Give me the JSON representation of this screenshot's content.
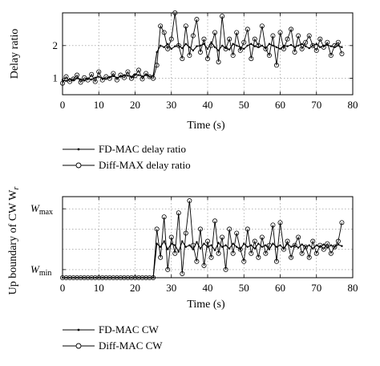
{
  "chart_data": [
    {
      "type": "line",
      "xlabel": "Time (s)",
      "ylabel": "Delay ratio",
      "xlim": [
        0,
        80
      ],
      "ylim": [
        0.5,
        3.0
      ],
      "xticks": [
        "0",
        "10",
        "20",
        "30",
        "40",
        "50",
        "60",
        "70",
        "80"
      ],
      "yticks": [
        "1",
        "2"
      ],
      "grid": "dotted",
      "legend_placement": "below",
      "series": [
        {
          "name": "FD-MAC delay ratio",
          "marker": "dot",
          "x": [
            0,
            1,
            2,
            3,
            4,
            5,
            6,
            7,
            8,
            9,
            10,
            11,
            12,
            13,
            14,
            15,
            16,
            17,
            18,
            19,
            20,
            21,
            22,
            23,
            24,
            25,
            26,
            27,
            28,
            29,
            30,
            31,
            32,
            33,
            34,
            35,
            36,
            37,
            38,
            39,
            40,
            41,
            42,
            43,
            44,
            45,
            46,
            47,
            48,
            49,
            50,
            51,
            52,
            53,
            54,
            55,
            56,
            57,
            58,
            59,
            60,
            61,
            62,
            63,
            64,
            65,
            66,
            67,
            68,
            69,
            70,
            71,
            72,
            73,
            74,
            75,
            76,
            77
          ],
          "values": [
            0.95,
            0.92,
            0.98,
            0.95,
            1.0,
            0.97,
            0.93,
            1.0,
            0.96,
            1.02,
            1.05,
            1.0,
            0.98,
            1.03,
            1.07,
            1.02,
            1.05,
            1.1,
            1.08,
            1.05,
            1.12,
            1.1,
            1.06,
            1.1,
            1.05,
            1.08,
            1.8,
            2.0,
            1.95,
            2.05,
            1.9,
            1.98,
            2.0,
            1.92,
            2.05,
            1.95,
            1.85,
            1.98,
            2.0,
            2.05,
            1.9,
            2.1,
            1.95,
            1.85,
            2.0,
            1.92,
            1.88,
            2.05,
            2.0,
            1.95,
            1.9,
            2.0,
            2.05,
            1.98,
            1.95,
            2.0,
            1.92,
            2.05,
            2.0,
            1.95,
            1.9,
            2.0,
            1.98,
            2.02,
            1.95,
            2.0,
            2.05,
            1.98,
            1.92,
            2.0,
            2.05,
            1.95,
            2.0,
            2.02,
            1.98,
            1.95,
            2.0,
            1.95
          ]
        },
        {
          "name": "Diff-MAX delay ratio",
          "marker": "circle",
          "x": [
            0,
            1,
            2,
            3,
            4,
            5,
            6,
            7,
            8,
            9,
            10,
            11,
            12,
            13,
            14,
            15,
            16,
            17,
            18,
            19,
            20,
            21,
            22,
            23,
            24,
            25,
            26,
            27,
            28,
            29,
            30,
            31,
            32,
            33,
            34,
            35,
            36,
            37,
            38,
            39,
            40,
            41,
            42,
            43,
            44,
            45,
            46,
            47,
            48,
            49,
            50,
            51,
            52,
            53,
            54,
            55,
            56,
            57,
            58,
            59,
            60,
            61,
            62,
            63,
            64,
            65,
            66,
            67,
            68,
            69,
            70,
            71,
            72,
            73,
            74,
            75,
            76,
            77
          ],
          "values": [
            0.85,
            1.05,
            0.9,
            0.98,
            1.1,
            0.88,
            1.02,
            0.95,
            1.12,
            0.9,
            1.2,
            0.95,
            1.05,
            1.0,
            1.15,
            0.95,
            1.1,
            1.02,
            1.2,
            1.0,
            1.08,
            1.25,
            0.98,
            1.15,
            1.05,
            1.0,
            1.4,
            2.6,
            2.4,
            1.9,
            2.2,
            3.0,
            2.0,
            1.6,
            2.6,
            1.7,
            2.3,
            2.8,
            1.8,
            2.2,
            1.6,
            2.0,
            2.4,
            1.5,
            2.9,
            1.9,
            2.2,
            1.7,
            2.4,
            1.85,
            2.1,
            2.5,
            1.6,
            2.2,
            2.0,
            2.6,
            1.9,
            1.7,
            2.3,
            1.4,
            2.4,
            1.9,
            2.2,
            2.5,
            1.8,
            2.3,
            1.9,
            2.1,
            2.3,
            2.0,
            1.85,
            2.2,
            1.95,
            2.1,
            1.7,
            2.0,
            2.1,
            1.75
          ]
        }
      ]
    },
    {
      "type": "line",
      "xlabel": "Time (s)",
      "ylabel": "Up boundary of CW W",
      "ylabel_sub": "r",
      "xlim": [
        0,
        80
      ],
      "ylim": [
        0,
        1.0
      ],
      "xticks": [
        "0",
        "10",
        "20",
        "30",
        "40",
        "50",
        "60",
        "70",
        "80"
      ],
      "yticks": [
        {
          "main": "W",
          "sub": "min",
          "value": 0.1
        },
        {
          "main": "W",
          "sub": "max",
          "value": 0.85
        }
      ],
      "grid": "dotted",
      "legend_placement": "below",
      "series": [
        {
          "name": "FD-MAC CW",
          "marker": "dot",
          "x": [
            0,
            1,
            2,
            3,
            4,
            5,
            6,
            7,
            8,
            9,
            10,
            11,
            12,
            13,
            14,
            15,
            16,
            17,
            18,
            19,
            20,
            21,
            22,
            23,
            24,
            25,
            26,
            27,
            28,
            29,
            30,
            31,
            32,
            33,
            34,
            35,
            36,
            37,
            38,
            39,
            40,
            41,
            42,
            43,
            44,
            45,
            46,
            47,
            48,
            49,
            50,
            51,
            52,
            53,
            54,
            55,
            56,
            57,
            58,
            59,
            60,
            61,
            62,
            63,
            64,
            65,
            66,
            67,
            68,
            69,
            70,
            71,
            72,
            73,
            74,
            75,
            76,
            77
          ],
          "values": [
            0.0,
            0.0,
            0.0,
            0.0,
            0.0,
            0.0,
            0.0,
            0.0,
            0.0,
            0.0,
            0.0,
            0.0,
            0.0,
            0.0,
            0.0,
            0.0,
            0.0,
            0.0,
            0.0,
            0.0,
            0.0,
            0.0,
            0.0,
            0.0,
            0.0,
            0.0,
            0.42,
            0.38,
            0.45,
            0.35,
            0.42,
            0.4,
            0.32,
            0.45,
            0.38,
            0.4,
            0.35,
            0.44,
            0.36,
            0.42,
            0.38,
            0.4,
            0.34,
            0.43,
            0.38,
            0.4,
            0.36,
            0.42,
            0.38,
            0.35,
            0.42,
            0.38,
            0.4,
            0.36,
            0.42,
            0.38,
            0.4,
            0.35,
            0.42,
            0.38,
            0.4,
            0.36,
            0.42,
            0.38,
            0.4,
            0.37,
            0.41,
            0.38,
            0.4,
            0.36,
            0.4,
            0.38,
            0.41,
            0.37,
            0.4,
            0.38,
            0.41,
            0.39
          ]
        },
        {
          "name": "Diff-MAC CW",
          "marker": "circle",
          "x": [
            0,
            1,
            2,
            3,
            4,
            5,
            6,
            7,
            8,
            9,
            10,
            11,
            12,
            13,
            14,
            15,
            16,
            17,
            18,
            19,
            20,
            21,
            22,
            23,
            24,
            25,
            26,
            27,
            28,
            29,
            30,
            31,
            32,
            33,
            34,
            35,
            36,
            37,
            38,
            39,
            40,
            41,
            42,
            43,
            44,
            45,
            46,
            47,
            48,
            49,
            50,
            51,
            52,
            53,
            54,
            55,
            56,
            57,
            58,
            59,
            60,
            61,
            62,
            63,
            64,
            65,
            66,
            67,
            68,
            69,
            70,
            71,
            72,
            73,
            74,
            75,
            76,
            77
          ],
          "values": [
            0.0,
            0.0,
            0.0,
            0.0,
            0.0,
            0.0,
            0.0,
            0.0,
            0.0,
            0.0,
            0.0,
            0.0,
            0.0,
            0.0,
            0.0,
            0.0,
            0.0,
            0.0,
            0.0,
            0.0,
            0.0,
            0.0,
            0.0,
            0.0,
            0.0,
            0.0,
            0.6,
            0.25,
            0.75,
            0.1,
            0.5,
            0.3,
            0.8,
            0.05,
            0.55,
            0.95,
            0.4,
            0.2,
            0.6,
            0.15,
            0.45,
            0.25,
            0.7,
            0.3,
            0.5,
            0.1,
            0.6,
            0.3,
            0.55,
            0.35,
            0.2,
            0.6,
            0.3,
            0.45,
            0.25,
            0.5,
            0.3,
            0.4,
            0.65,
            0.2,
            0.68,
            0.35,
            0.45,
            0.25,
            0.4,
            0.5,
            0.3,
            0.38,
            0.25,
            0.45,
            0.3,
            0.4,
            0.35,
            0.42,
            0.3,
            0.38,
            0.45,
            0.68
          ]
        }
      ]
    }
  ]
}
